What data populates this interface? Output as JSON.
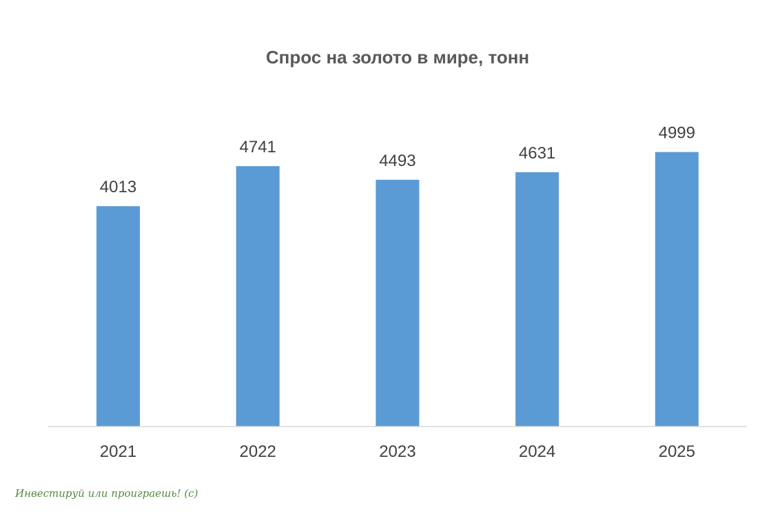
{
  "chart_data": {
    "type": "bar",
    "title": "Спрос на золото в мире, тонн",
    "categories": [
      "2021",
      "2022",
      "2023",
      "2024",
      "2025"
    ],
    "values": [
      4013,
      4741,
      4493,
      4631,
      4999
    ],
    "data_labels": [
      "4013",
      "4741",
      "4493",
      "4631",
      "4999"
    ],
    "xlabel": "",
    "ylabel": "",
    "ylim": [
      0,
      6000
    ],
    "grid": false,
    "legend": "none",
    "bar_color": "#5b9bd5",
    "axis_color": "#d9d9d9"
  },
  "watermark": {
    "text": "Инвестируй или проиграешь! (с)",
    "color": "#4f8a3c"
  }
}
